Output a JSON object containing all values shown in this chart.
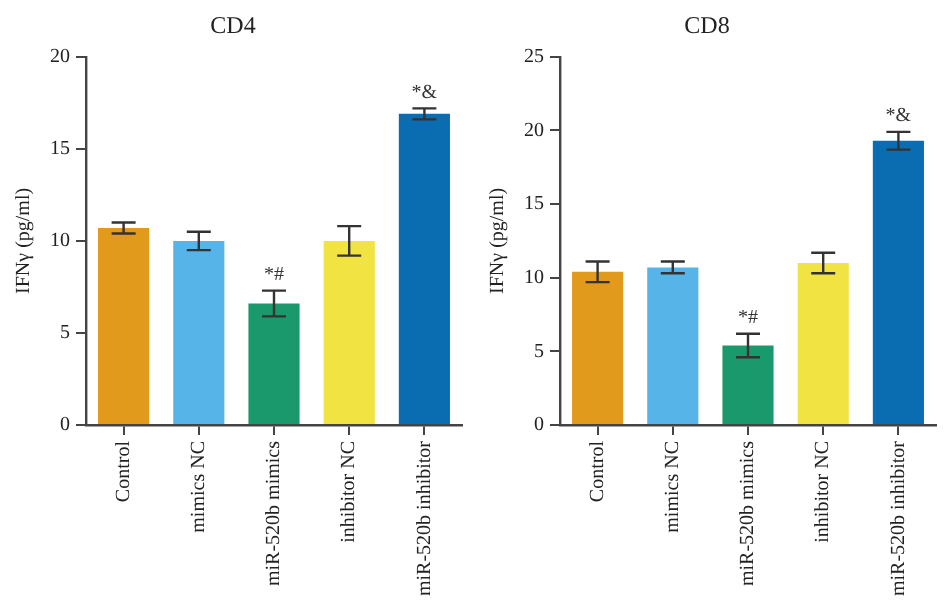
{
  "chart_data": [
    {
      "type": "bar",
      "title": "CD4",
      "ylabel": "IFNγ (pg/ml)",
      "categories": [
        "Control",
        "mimics NC",
        "miR-520b mimics",
        "inhibitor NC",
        "miR-520b inhibitor"
      ],
      "values": [
        10.7,
        10.0,
        6.6,
        10.0,
        16.9
      ],
      "errors": [
        0.3,
        0.5,
        0.7,
        0.8,
        0.3
      ],
      "colors": [
        "#e29a1c",
        "#56b4e9",
        "#1a9a6c",
        "#f1e342",
        "#0b6db1"
      ],
      "ylim": [
        0,
        20
      ],
      "yticks": [
        0,
        5,
        10,
        15,
        20
      ],
      "grid": false,
      "legend": false,
      "annotations": [
        {
          "text": "*#",
          "x": "miR-520b mimics",
          "y": 7.3
        },
        {
          "text": "*&",
          "x": "miR-520b inhibitor",
          "y": 17.2
        }
      ]
    },
    {
      "type": "bar",
      "title": "CD8",
      "ylabel": "IFNγ (pg/ml)",
      "categories": [
        "Control",
        "mimics NC",
        "miR-520b mimics",
        "inhibitor NC",
        "miR-520b inhibitor"
      ],
      "values": [
        10.4,
        10.7,
        5.4,
        11.0,
        19.3
      ],
      "errors": [
        0.7,
        0.4,
        0.8,
        0.7,
        0.6
      ],
      "colors": [
        "#e29a1c",
        "#56b4e9",
        "#1a9a6c",
        "#f1e342",
        "#0b6db1"
      ],
      "ylim": [
        0,
        25
      ],
      "yticks": [
        0,
        5,
        10,
        15,
        20,
        25
      ],
      "grid": false,
      "legend": false,
      "annotations": [
        {
          "text": "*#",
          "x": "miR-520b mimics",
          "y": 6.2
        },
        {
          "text": "*&",
          "x": "miR-520b inhibitor",
          "y": 19.9
        }
      ]
    }
  ]
}
